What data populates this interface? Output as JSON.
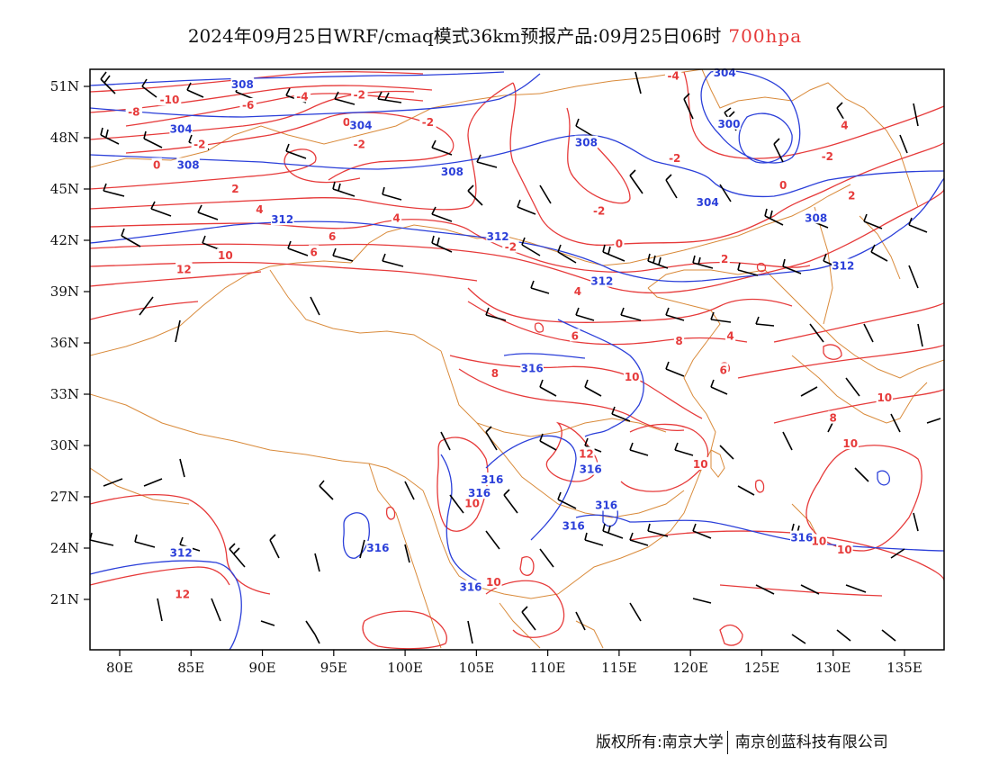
{
  "title": {
    "main": "2024年09月25日WRF/cmaq模式36km预报产品:09月25日06时",
    "level": "700hpa"
  },
  "axes": {
    "lat_labels": [
      "51N",
      "48N",
      "45N",
      "42N",
      "39N",
      "36N",
      "33N",
      "30N",
      "27N",
      "24N",
      "21N"
    ],
    "lon_labels": [
      "80E",
      "85E",
      "90E",
      "95E",
      "100E",
      "105E",
      "110E",
      "115E",
      "120E",
      "125E",
      "130E",
      "135E"
    ]
  },
  "colors": {
    "temperature": "#e63a3a",
    "height": "#2b3fd9",
    "boundary": "#d98a3a",
    "wind": "#000000"
  },
  "temperature_labels": [
    {
      "text": "-10",
      "lon": 83.5,
      "lat": 50.2
    },
    {
      "text": "-8",
      "lon": 81.0,
      "lat": 49.5
    },
    {
      "text": "-6",
      "lon": 89.0,
      "lat": 49.9
    },
    {
      "text": "-4",
      "lon": 92.8,
      "lat": 50.4
    },
    {
      "text": "-2",
      "lon": 96.8,
      "lat": 50.5
    },
    {
      "text": "0",
      "lon": 95.9,
      "lat": 48.9
    },
    {
      "text": "-2",
      "lon": 85.6,
      "lat": 47.6
    },
    {
      "text": "0",
      "lon": 82.6,
      "lat": 46.4
    },
    {
      "text": "-2",
      "lon": 101.6,
      "lat": 48.9
    },
    {
      "text": "-2",
      "lon": 96.8,
      "lat": 47.6
    },
    {
      "text": "-4",
      "lon": 118.8,
      "lat": 51.6
    },
    {
      "text": "4",
      "lon": 130.8,
      "lat": 48.7
    },
    {
      "text": "-2",
      "lon": 118.9,
      "lat": 46.8
    },
    {
      "text": "-2",
      "lon": 129.6,
      "lat": 46.9
    },
    {
      "text": "0",
      "lon": 126.5,
      "lat": 45.2
    },
    {
      "text": "2",
      "lon": 131.3,
      "lat": 44.6
    },
    {
      "text": "-2",
      "lon": 113.6,
      "lat": 43.7
    },
    {
      "text": "2",
      "lon": 88.1,
      "lat": 45.0
    },
    {
      "text": "4",
      "lon": 89.8,
      "lat": 43.8
    },
    {
      "text": "4",
      "lon": 99.4,
      "lat": 43.3
    },
    {
      "text": "6",
      "lon": 94.9,
      "lat": 42.2
    },
    {
      "text": "6",
      "lon": 93.6,
      "lat": 41.3
    },
    {
      "text": "10",
      "lon": 87.4,
      "lat": 41.1
    },
    {
      "text": "12",
      "lon": 84.5,
      "lat": 40.3
    },
    {
      "text": "-2",
      "lon": 107.4,
      "lat": 41.6
    },
    {
      "text": "0",
      "lon": 115.0,
      "lat": 41.8
    },
    {
      "text": "2",
      "lon": 122.4,
      "lat": 40.9
    },
    {
      "text": "4",
      "lon": 112.1,
      "lat": 39.0
    },
    {
      "text": "6",
      "lon": 111.9,
      "lat": 36.4
    },
    {
      "text": "8",
      "lon": 119.2,
      "lat": 36.1
    },
    {
      "text": "4",
      "lon": 122.8,
      "lat": 36.4
    },
    {
      "text": "6",
      "lon": 122.3,
      "lat": 34.4
    },
    {
      "text": "8",
      "lon": 106.3,
      "lat": 34.2
    },
    {
      "text": "10",
      "lon": 115.9,
      "lat": 34.0
    },
    {
      "text": "10",
      "lon": 133.6,
      "lat": 32.8
    },
    {
      "text": "8",
      "lon": 130.0,
      "lat": 31.6
    },
    {
      "text": "10",
      "lon": 131.2,
      "lat": 30.1
    },
    {
      "text": "12",
      "lon": 112.7,
      "lat": 29.5
    },
    {
      "text": "10",
      "lon": 120.7,
      "lat": 28.9
    },
    {
      "text": "10",
      "lon": 104.7,
      "lat": 26.6
    },
    {
      "text": "10",
      "lon": 129.0,
      "lat": 24.4
    },
    {
      "text": "10",
      "lon": 130.8,
      "lat": 23.9
    },
    {
      "text": "12",
      "lon": 84.4,
      "lat": 21.3
    },
    {
      "text": "10",
      "lon": 106.2,
      "lat": 22.0
    }
  ],
  "height_labels": [
    {
      "text": "308",
      "lon": 88.6,
      "lat": 51.1
    },
    {
      "text": "304",
      "lon": 84.3,
      "lat": 48.5
    },
    {
      "text": "304",
      "lon": 96.9,
      "lat": 48.7
    },
    {
      "text": "308",
      "lon": 84.8,
      "lat": 46.4
    },
    {
      "text": "308",
      "lon": 103.3,
      "lat": 46.0
    },
    {
      "text": "308",
      "lon": 112.7,
      "lat": 47.7
    },
    {
      "text": "304",
      "lon": 122.4,
      "lat": 51.8
    },
    {
      "text": "300",
      "lon": 122.7,
      "lat": 48.8
    },
    {
      "text": "304",
      "lon": 121.2,
      "lat": 44.2
    },
    {
      "text": "308",
      "lon": 128.8,
      "lat": 43.3
    },
    {
      "text": "312",
      "lon": 130.7,
      "lat": 40.5
    },
    {
      "text": "312",
      "lon": 91.4,
      "lat": 43.2
    },
    {
      "text": "312",
      "lon": 106.5,
      "lat": 42.2
    },
    {
      "text": "312",
      "lon": 113.8,
      "lat": 39.6
    },
    {
      "text": "316",
      "lon": 108.9,
      "lat": 34.5
    },
    {
      "text": "316",
      "lon": 106.1,
      "lat": 28.0
    },
    {
      "text": "316",
      "lon": 113.0,
      "lat": 28.6
    },
    {
      "text": "316",
      "lon": 105.2,
      "lat": 27.2
    },
    {
      "text": "316",
      "lon": 114.1,
      "lat": 26.5
    },
    {
      "text": "316",
      "lon": 111.8,
      "lat": 25.3
    },
    {
      "text": "316",
      "lon": 127.8,
      "lat": 24.6
    },
    {
      "text": "316",
      "lon": 98.1,
      "lat": 24.0
    },
    {
      "text": "312",
      "lon": 84.3,
      "lat": 23.7
    },
    {
      "text": "316",
      "lon": 104.6,
      "lat": 21.7
    }
  ],
  "copyright": {
    "left": "版权所有:南京大学",
    "right": "南京创蓝科技有限公司"
  }
}
